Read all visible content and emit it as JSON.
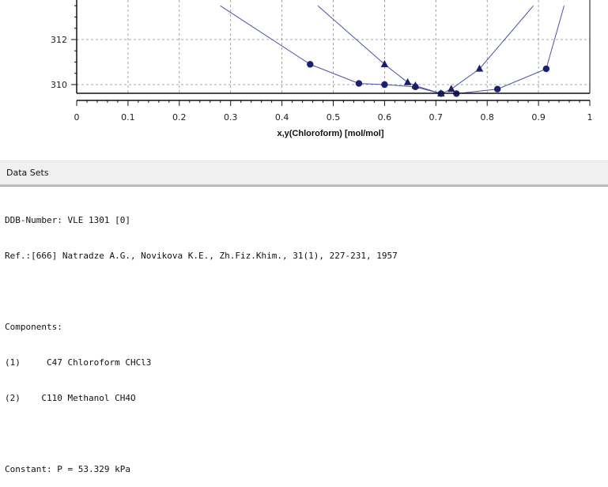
{
  "chart_data": {
    "type": "scatter",
    "xlabel": "x,y(Chloroform) [mol/mol]",
    "ylabel": "",
    "xlim": [
      0,
      1
    ],
    "ylim": [
      309.5,
      314.5
    ],
    "x_ticks": [
      "0",
      "0.1",
      "0.2",
      "0.3",
      "0.4",
      "0.5",
      "0.6",
      "0.7",
      "0.8",
      "0.9",
      "1"
    ],
    "y_ticks": [
      "312",
      "310"
    ],
    "grid": true,
    "series": [
      {
        "marker": "circle",
        "color": "#1a1f6e",
        "line_color": "#4a52a8",
        "x": [
          0.455,
          0.55,
          0.6,
          0.66,
          0.71,
          0.74,
          0.82,
          0.915
        ],
        "y": [
          310.9,
          310.05,
          310.0,
          309.9,
          309.6,
          309.6,
          309.8,
          310.7
        ],
        "line_extends_to": [
          [
            0.28,
            313.5
          ],
          [
            0.95,
            313.5
          ]
        ]
      },
      {
        "marker": "triangle",
        "color": "#1a1f6e",
        "line_color": "#4a52a8",
        "x": [
          0.6,
          0.645,
          0.66,
          0.71,
          0.73,
          0.785
        ],
        "y": [
          310.9,
          310.1,
          309.95,
          309.6,
          309.8,
          310.7
        ],
        "line_extends_to": [
          [
            0.47,
            313.5
          ],
          [
            0.89,
            313.5
          ]
        ]
      }
    ]
  },
  "datasets": {
    "title": "Data Sets",
    "ddb_number": "DDB-Number: VLE 1301 [0]",
    "reference": "Ref.:[666] Natradze A.G., Novikova K.E., Zh.Fiz.Khim., 31(1), 227-231, 1957",
    "components_label": "Components:",
    "component_1": "(1)     C47 Chloroform CHCl3",
    "component_2": "(2)    C110 Methanol CH4O",
    "constant": "Constant: P = 53.329 kPa"
  }
}
